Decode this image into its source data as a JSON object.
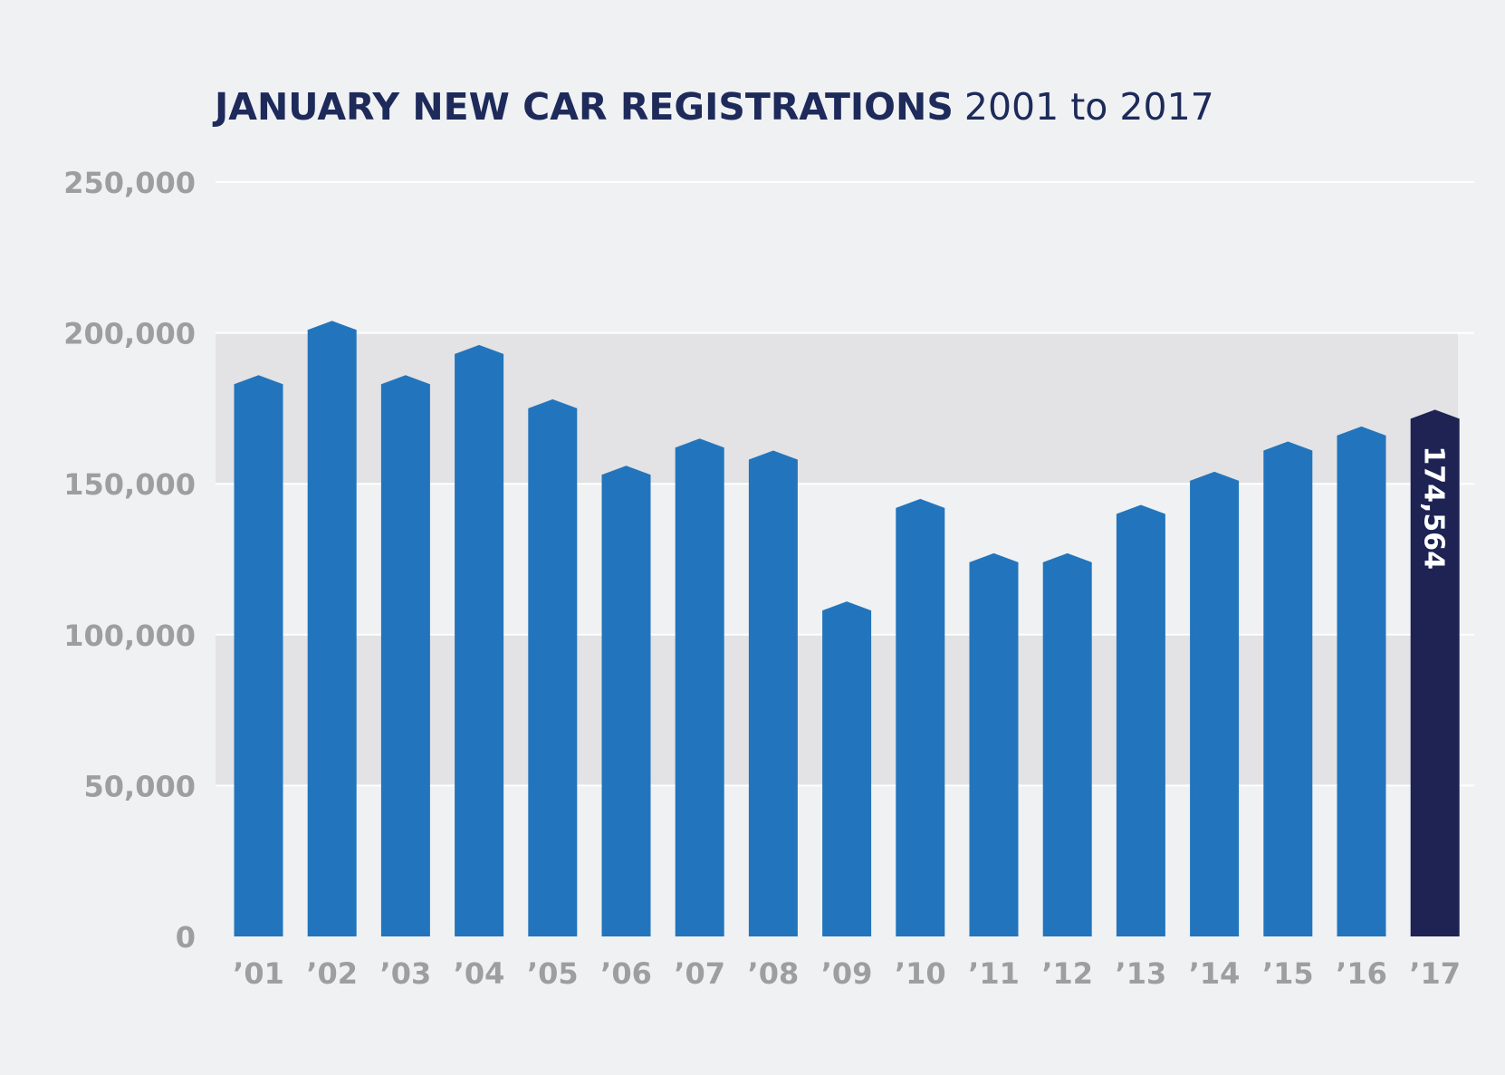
{
  "title": {
    "bold": "JANUARY NEW CAR REGISTRATIONS",
    "light": "2001 to 2017"
  },
  "colors": {
    "bar": "#2275bc",
    "highlight": "#1e2354",
    "band": "#e3e2e4",
    "background": "#eff1f3",
    "grid": "#ffffff",
    "tick": "#9d9ea0",
    "title": "#1d2a5a"
  },
  "chart_data": {
    "type": "bar",
    "title": "JANUARY NEW CAR REGISTRATIONS 2001 to 2017",
    "xlabel": "",
    "ylabel": "",
    "ylim": [
      0,
      250000
    ],
    "yticks": [
      0,
      50000,
      100000,
      150000,
      200000,
      250000
    ],
    "ytick_labels": [
      "0",
      "50,000",
      "100,000",
      "150,000",
      "200,000",
      "250,000"
    ],
    "shaded_bands": [
      [
        50000,
        100000
      ],
      [
        150000,
        200000
      ]
    ],
    "grid": true,
    "categories": [
      "’01",
      "’02",
      "’03",
      "’04",
      "’05",
      "’06",
      "’07",
      "’08",
      "’09",
      "’10",
      "’11",
      "’12",
      "’13",
      "’14",
      "’15",
      "’16",
      "’17"
    ],
    "values": [
      186000,
      204000,
      186000,
      196000,
      178000,
      156000,
      165000,
      161000,
      111000,
      145000,
      127000,
      127000,
      143000,
      154000,
      164000,
      169000,
      174564
    ],
    "highlight_index": 16,
    "data_labels": [
      {
        "index": 16,
        "text": "174,564"
      }
    ]
  }
}
